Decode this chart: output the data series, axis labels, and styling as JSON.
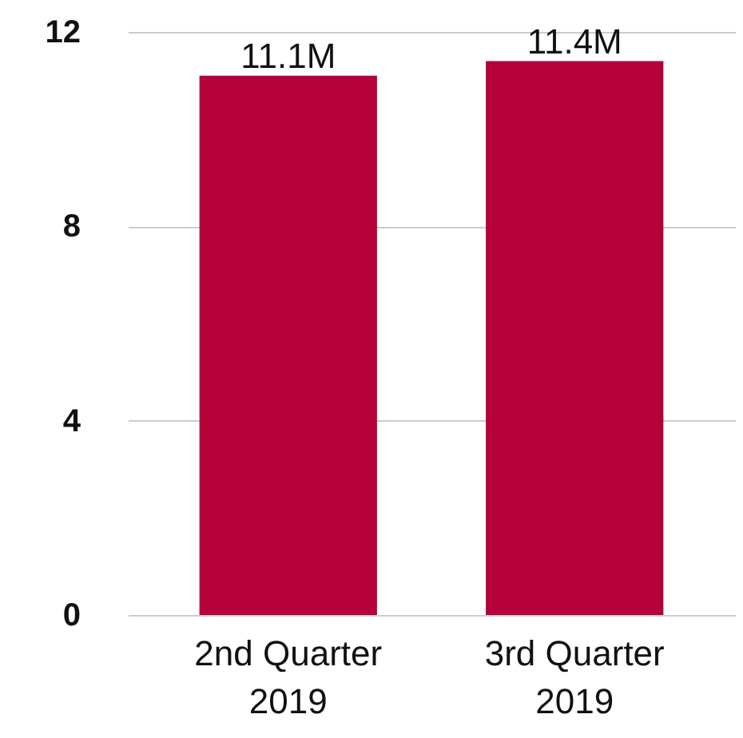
{
  "chart_data": {
    "type": "bar",
    "categories": [
      "2nd Quarter 2019",
      "3rd Quarter 2019"
    ],
    "values": [
      11.1,
      11.4
    ],
    "value_labels": [
      "11.1M",
      "11.4M"
    ],
    "color": "#b5003a",
    "ylim": [
      0,
      12
    ],
    "yticks": [
      0,
      4,
      8,
      12
    ],
    "grid": "y"
  }
}
